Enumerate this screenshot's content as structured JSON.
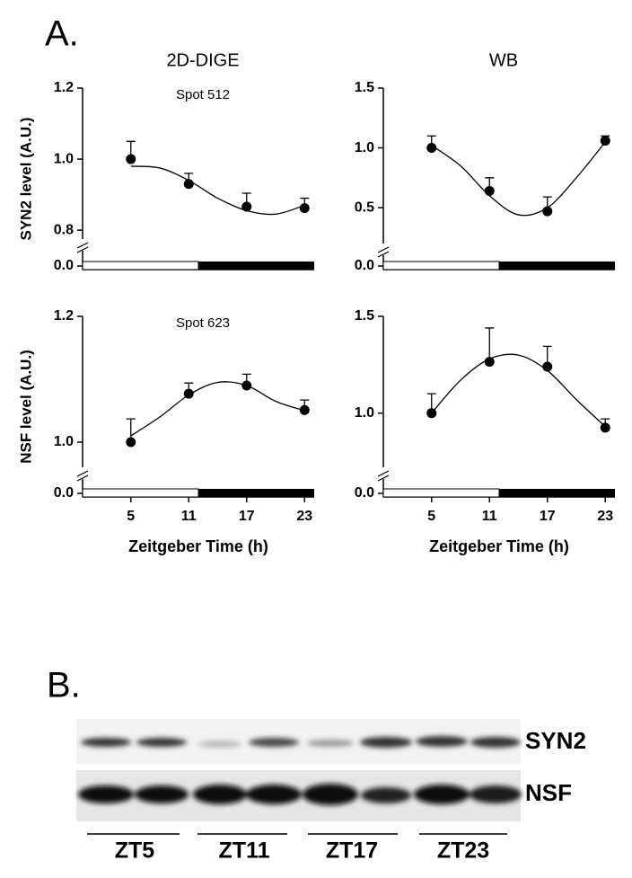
{
  "panels": {
    "a_label": "A.",
    "b_label": "B."
  },
  "chart_data": [
    {
      "type": "scatter",
      "title": "2D-DIGE",
      "annotation": "Spot 512",
      "ylabel": "SYN2 level (A.U.)",
      "xlim": [
        0,
        24
      ],
      "ylim": [
        0.775,
        1.2
      ],
      "ybreak": true,
      "yticks": [
        {
          "value": 0,
          "label": "0.0"
        },
        0.8,
        {
          "value": 1,
          "label": "1.0"
        },
        1.2
      ],
      "light_period": [
        0,
        12
      ],
      "dark_period": [
        12,
        24
      ],
      "x": [
        5,
        11,
        17,
        23
      ],
      "values": [
        1.0,
        0.93,
        0.866,
        0.862
      ],
      "errors": [
        0.05,
        0.03,
        0.038,
        0.028
      ],
      "fit_x": [
        5,
        8,
        11,
        14,
        17,
        20,
        23
      ],
      "fit_values": [
        0.98,
        0.975,
        0.94,
        0.89,
        0.855,
        0.845,
        0.87
      ],
      "color": "#000000"
    },
    {
      "type": "scatter",
      "title": "WB",
      "xlim": [
        0,
        24
      ],
      "ylim": [
        0.2,
        1.5
      ],
      "ybreak": true,
      "yticks": [
        {
          "value": 0,
          "label": "0.0"
        },
        0.5,
        {
          "value": 1,
          "label": "1.0"
        },
        1.5
      ],
      "light_period": [
        0,
        12
      ],
      "dark_period": [
        12,
        24
      ],
      "x": [
        5,
        11,
        17,
        23
      ],
      "values": [
        1.0,
        0.64,
        0.47,
        1.06
      ],
      "errors": [
        0.1,
        0.11,
        0.12,
        0.04
      ],
      "fit_x": [
        5,
        8,
        11,
        14,
        17,
        20,
        23
      ],
      "fit_values": [
        1.02,
        0.85,
        0.6,
        0.44,
        0.5,
        0.75,
        1.05
      ],
      "color": "#000000"
    },
    {
      "type": "scatter",
      "annotation": "Spot 623",
      "ylabel": "NSF level (A.U.)",
      "xlabel": "Zeitgeber Time (h)",
      "xlim": [
        0,
        24
      ],
      "ylim": [
        0.96,
        1.2
      ],
      "ybreak": true,
      "yticks": [
        {
          "value": 0,
          "label": "0.0"
        },
        {
          "value": 1,
          "label": "1.0"
        },
        1.2
      ],
      "xticks": [
        5,
        11,
        17,
        23
      ],
      "light_period": [
        0,
        12
      ],
      "dark_period": [
        12,
        24
      ],
      "x": [
        5,
        11,
        17,
        23
      ],
      "values": [
        1.0,
        1.077,
        1.09,
        1.051
      ],
      "errors": [
        0.037,
        0.017,
        0.018,
        0.016
      ],
      "fit_x": [
        5,
        8,
        11,
        14,
        17,
        20,
        23
      ],
      "fit_values": [
        1.01,
        1.04,
        1.075,
        1.095,
        1.09,
        1.065,
        1.05
      ],
      "color": "#000000"
    },
    {
      "type": "scatter",
      "xlabel": "Zeitgeber Time (h)",
      "xlim": [
        0,
        24
      ],
      "ylim": [
        0.72,
        1.5
      ],
      "ybreak": true,
      "yticks": [
        {
          "value": 0,
          "label": "0.0"
        },
        {
          "value": 1,
          "label": "1.0"
        },
        1.5
      ],
      "xticks": [
        5,
        11,
        17,
        23
      ],
      "light_period": [
        0,
        12
      ],
      "dark_period": [
        12,
        24
      ],
      "x": [
        5,
        11,
        17,
        23
      ],
      "values": [
        1.0,
        1.265,
        1.24,
        0.925
      ],
      "errors": [
        0.1,
        0.175,
        0.105,
        0.045
      ],
      "fit_x": [
        5,
        8,
        11,
        14,
        17,
        20,
        23
      ],
      "fit_values": [
        1.0,
        1.17,
        1.28,
        1.3,
        1.22,
        1.07,
        0.93
      ],
      "color": "#000000"
    }
  ],
  "blot": {
    "rows": [
      "SYN2",
      "NSF"
    ],
    "lanes": [
      "ZT5",
      "ZT11",
      "ZT17",
      "ZT23"
    ]
  }
}
